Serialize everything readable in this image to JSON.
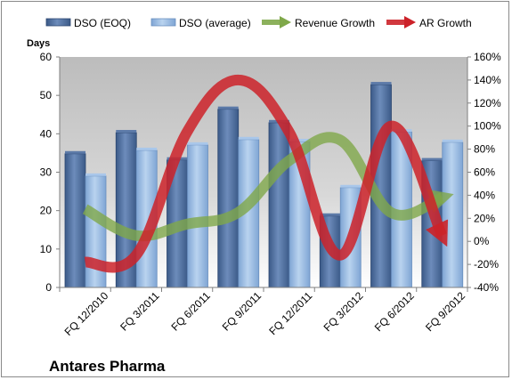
{
  "chart_data": {
    "type": "bar",
    "company_label": "Antares Pharma",
    "left_axis": {
      "label": "Days",
      "ylim": [
        0,
        60
      ],
      "ticks": [
        "0",
        "10",
        "20",
        "30",
        "40",
        "50",
        "60"
      ]
    },
    "right_axis": {
      "ylim": [
        -40,
        160
      ],
      "ticks": [
        "-40%",
        "-20%",
        "0%",
        "20%",
        "40%",
        "60%",
        "80%",
        "100%",
        "120%",
        "140%",
        "160%"
      ]
    },
    "categories": [
      "FQ 12/2010",
      "FQ 3/2011",
      "FQ 6/2011",
      "FQ 9/2011",
      "FQ 12/2011",
      "FQ 3/2012",
      "FQ 6/2012",
      "FQ 9/2012"
    ],
    "series": [
      {
        "name": "DSO (EOQ)",
        "type": "bar",
        "axis": "left",
        "color": "#4a6a9a",
        "values": [
          34.8,
          40.3,
          33.2,
          46.4,
          42.9,
          18.6,
          52.8,
          33.0
        ]
      },
      {
        "name": "DSO (average)",
        "type": "bar",
        "axis": "left",
        "color": "#8ab0dc",
        "values": [
          29.0,
          35.7,
          37.1,
          38.5,
          38.0,
          26.0,
          40.5,
          37.8
        ]
      },
      {
        "name": "Revenue Growth",
        "type": "line",
        "axis": "right",
        "color": "#7fa84a",
        "values": [
          28,
          5,
          15,
          25,
          70,
          88,
          25,
          38
        ]
      },
      {
        "name": "AR Growth",
        "type": "line",
        "axis": "right",
        "color": "#cc2229",
        "values": [
          -18,
          -12,
          95,
          140,
          95,
          -12,
          100,
          5
        ]
      }
    ],
    "legend": "top",
    "grid": false
  }
}
